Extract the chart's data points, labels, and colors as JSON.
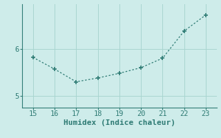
{
  "x": [
    15,
    16,
    17,
    18,
    19,
    20,
    21,
    22,
    23
  ],
  "y": [
    5.82,
    5.57,
    5.3,
    5.38,
    5.48,
    5.6,
    5.8,
    6.38,
    6.72
  ],
  "line_color": "#2d7a73",
  "marker_color": "#2d7a73",
  "bg_color": "#ceecea",
  "grid_color": "#a8d5d0",
  "axis_color": "#2d7a73",
  "xlabel": "Humidex (Indice chaleur)",
  "xlabel_fontsize": 8,
  "tick_fontsize": 7.5,
  "ytick_labels": [
    "5",
    "6"
  ],
  "ytick_positions": [
    5.0,
    6.0
  ],
  "xlim": [
    14.5,
    23.5
  ],
  "ylim": [
    4.75,
    6.95
  ],
  "xticks": [
    15,
    16,
    17,
    18,
    19,
    20,
    21,
    22,
    23
  ],
  "figsize": [
    3.2,
    2.0
  ],
  "dpi": 100
}
